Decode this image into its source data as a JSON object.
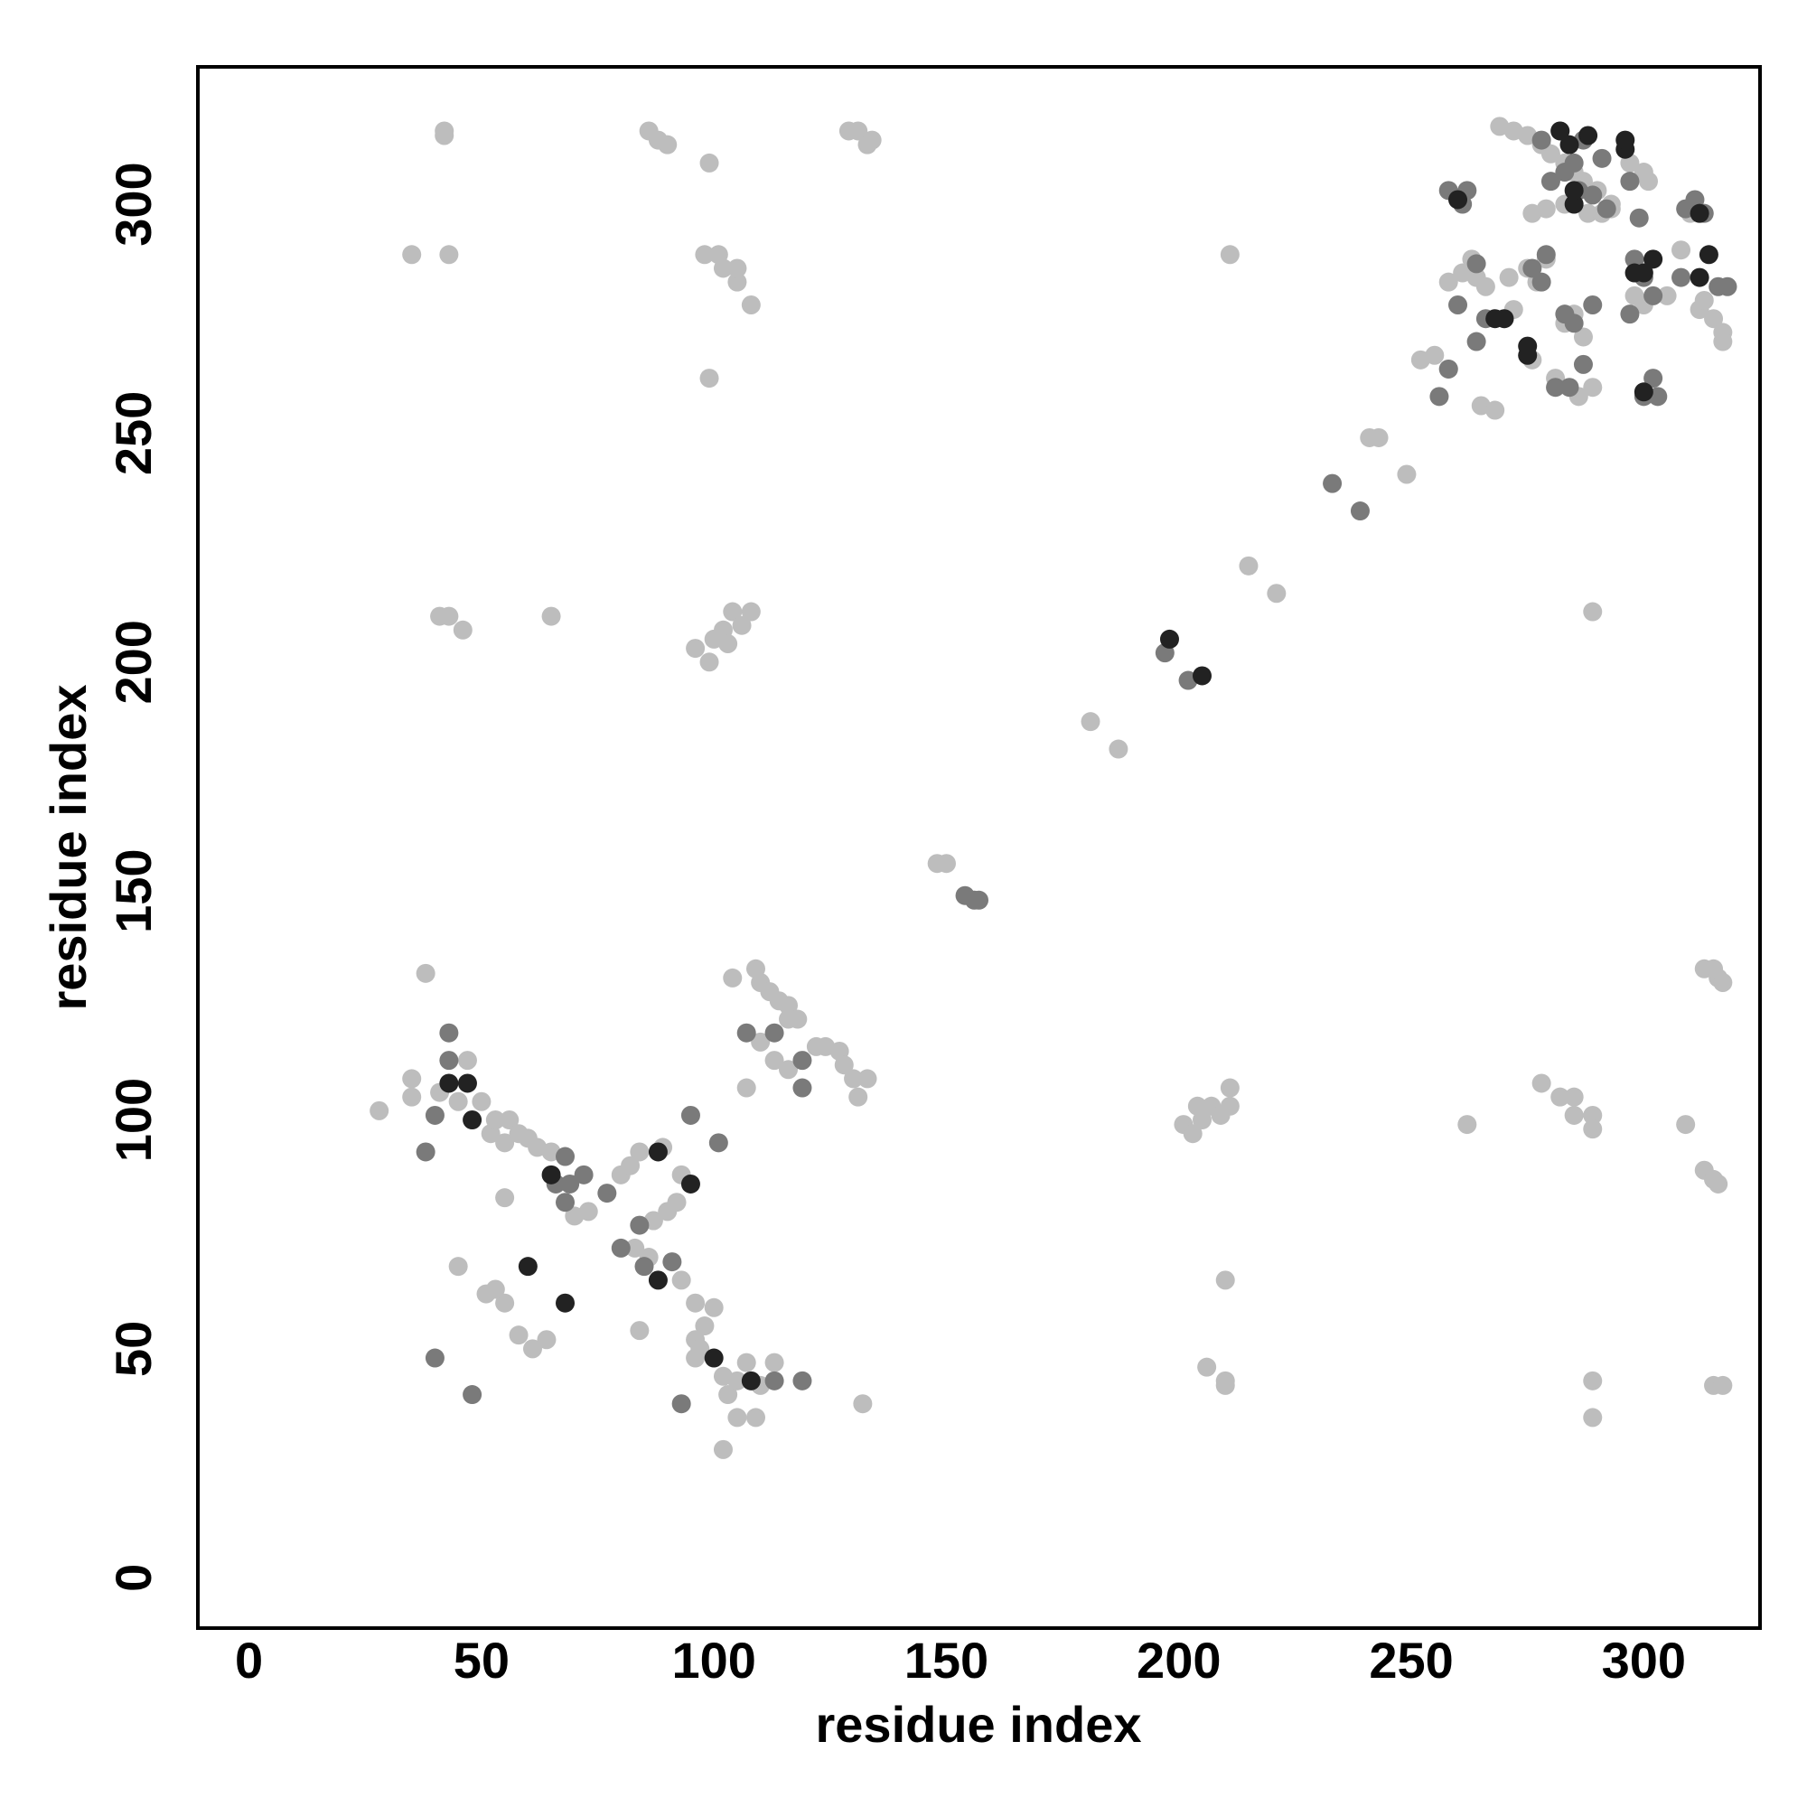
{
  "chart_data": {
    "type": "scatter",
    "xlabel": "residue index",
    "ylabel": "residue index",
    "xlim": [
      -11,
      325
    ],
    "ylim": [
      -11,
      330
    ],
    "xticks": [
      0,
      50,
      100,
      150,
      200,
      250,
      300
    ],
    "yticks": [
      0,
      50,
      100,
      150,
      200,
      250,
      300
    ],
    "grid": false,
    "series": [
      {
        "color": "#bdbdbd",
        "x": [
          42,
          42,
          86,
          88,
          90,
          99,
          129,
          131,
          133,
          134,
          35,
          43,
          98,
          101,
          102,
          105,
          105,
          108,
          99,
          211,
          41,
          43,
          46,
          65,
          96,
          99,
          100,
          102,
          104,
          106,
          108,
          103,
          215,
          221,
          181,
          187,
          289,
          148,
          150,
          269,
          272,
          275,
          278,
          280,
          283,
          285,
          287,
          290,
          293,
          297,
          300,
          301,
          258,
          261,
          263,
          264,
          266,
          271,
          275,
          277,
          279,
          252,
          255,
          258,
          265,
          268,
          270,
          272,
          283,
          285,
          287,
          279,
          276,
          283,
          288,
          298,
          300,
          305,
          308,
          312,
          315,
          317,
          317,
          313,
          276,
          281,
          286,
          289,
          291,
          293,
          310,
          313,
          315,
          316,
          317,
          278,
          282,
          285,
          285,
          289,
          289,
          262,
          309,
          313,
          315,
          316,
          289,
          289,
          315,
          317,
          210,
          206,
          210,
          210,
          201,
          203,
          205,
          207,
          209,
          211,
          211,
          204,
          28,
          35,
          35,
          38,
          41,
          45,
          47,
          50,
          52,
          53,
          55,
          56,
          58,
          60,
          62,
          65,
          70,
          73,
          80,
          82,
          84,
          87,
          89,
          93,
          92,
          90,
          87,
          83,
          86,
          93,
          96,
          98,
          100,
          96,
          97,
          102,
          103,
          105,
          107,
          110,
          113,
          105,
          109,
          102,
          132,
          64,
          61,
          58,
          55,
          53,
          51,
          45,
          55,
          84,
          96,
          104,
          109,
          110,
          112,
          114,
          116,
          118,
          110,
          113,
          116,
          107,
          124,
          127,
          128,
          130,
          133,
          131,
          122,
          116,
          241,
          243,
          249
        ],
        "values": [
          315,
          316,
          316,
          314,
          313,
          309,
          316,
          316,
          313,
          314,
          289,
          289,
          289,
          289,
          286,
          283,
          286,
          278,
          262,
          289,
          210,
          210,
          207,
          210,
          203,
          200,
          205,
          207,
          211,
          208,
          211,
          204,
          221,
          215,
          187,
          181,
          211,
          156,
          156,
          317,
          316,
          315,
          313,
          311,
          309,
          307,
          305,
          303,
          300,
          309,
          307,
          305,
          283,
          285,
          288,
          284,
          282,
          284,
          286,
          283,
          288,
          266,
          267,
          264,
          256,
          255,
          275,
          277,
          274,
          276,
          271,
          299,
          298,
          300,
          298,
          280,
          278,
          280,
          290,
          277,
          275,
          272,
          270,
          279,
          266,
          262,
          258,
          260,
          298,
          299,
          298,
          133,
          133,
          131,
          130,
          108,
          105,
          105,
          101,
          101,
          98,
          99,
          99,
          89,
          87,
          86,
          43,
          35,
          42,
          42,
          65,
          46,
          43,
          42,
          99,
          97,
          100,
          103,
          101,
          103,
          107,
          103,
          102,
          109,
          105,
          132,
          106,
          104,
          113,
          104,
          97,
          100,
          95,
          100,
          97,
          96,
          94,
          93,
          79,
          80,
          88,
          90,
          93,
          78,
          94,
          88,
          82,
          80,
          78,
          72,
          70,
          65,
          60,
          55,
          59,
          52,
          50,
          44,
          40,
          43,
          47,
          42,
          47,
          35,
          35,
          28,
          38,
          52,
          50,
          53,
          60,
          63,
          62,
          68,
          83,
          54,
          48,
          131,
          133,
          130,
          128,
          126,
          125,
          122,
          117,
          113,
          111,
          107,
          116,
          115,
          112,
          109,
          109,
          105,
          116,
          122,
          249,
          249,
          241
        ]
      },
      {
        "color": "#7a7a7a",
        "x": [
          258,
          262,
          261,
          264,
          266,
          264,
          260,
          256,
          258,
          276,
          278,
          279,
          283,
          285,
          289,
          284,
          281,
          287,
          286,
          289,
          292,
          298,
          300,
          302,
          303,
          300,
          309,
          311,
          313,
          316,
          318,
          308,
          280,
          283,
          285,
          278,
          282,
          287,
          291,
          297,
          299,
          297,
          302,
          233,
          239,
          154,
          156,
          157,
          38,
          40,
          43,
          43,
          66,
          68,
          69,
          68,
          72,
          77,
          80,
          84,
          85,
          91,
          95,
          101,
          93,
          119,
          113,
          40,
          48,
          107,
          113,
          119,
          119,
          197,
          202
        ],
        "values": [
          303,
          303,
          300,
          287,
          275,
          270,
          278,
          258,
          264,
          286,
          283,
          289,
          276,
          274,
          278,
          260,
          260,
          265,
          303,
          302,
          299,
          288,
          284,
          280,
          258,
          258,
          299,
          301,
          298,
          282,
          282,
          284,
          305,
          307,
          309,
          314,
          316,
          314,
          310,
          305,
          297,
          276,
          262,
          239,
          233,
          149,
          148,
          148,
          93,
          101,
          119,
          113,
          86,
          92,
          86,
          82,
          88,
          84,
          72,
          77,
          68,
          69,
          101,
          95,
          38,
          43,
          43,
          48,
          40,
          119,
          119,
          113,
          107,
          202,
          196
        ]
      },
      {
        "color": "#222222",
        "x": [
          260,
          268,
          270,
          275,
          275,
          282,
          284,
          288,
          285,
          285,
          296,
          298,
          300,
          302,
          312,
          314,
          312,
          300,
          296,
          198,
          205,
          48,
          65,
          100,
          68,
          60,
          88,
          88,
          95,
          108,
          43,
          47
        ],
        "values": [
          301,
          275,
          275,
          267,
          269,
          316,
          313,
          315,
          300,
          303,
          312,
          285,
          285,
          288,
          298,
          289,
          284,
          259,
          314,
          205,
          197,
          100,
          88,
          48,
          60,
          68,
          65,
          93,
          86,
          43,
          108,
          108
        ]
      }
    ]
  }
}
